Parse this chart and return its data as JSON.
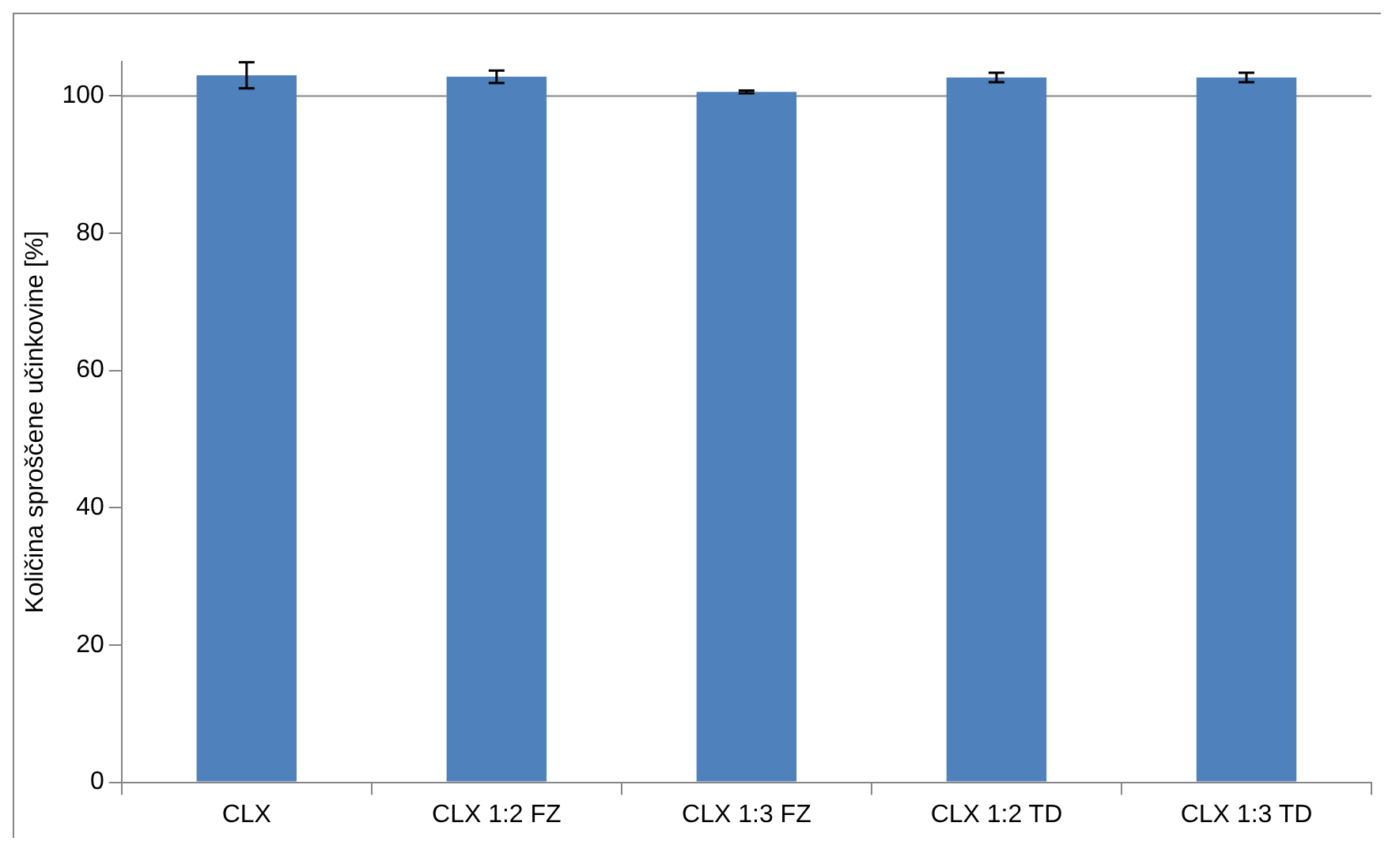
{
  "chart_data": {
    "type": "bar",
    "ylabel": "Količina sproščene učinkovine [%]",
    "categories": [
      "CLX",
      "CLX 1:2 FZ",
      "CLX 1:3 FZ",
      "CLX 1:2 TD",
      "CLX 1:3 TD"
    ],
    "values": [
      103.0,
      102.8,
      100.6,
      102.7,
      102.7
    ],
    "errors": [
      1.9,
      0.9,
      0.2,
      0.7,
      0.7
    ],
    "color": "#4f81bd",
    "ylim": [
      0,
      105
    ],
    "yticks": [
      0,
      20,
      40,
      60,
      80,
      100
    ],
    "ref_lines": [
      {
        "axis": "y",
        "value": 100,
        "color": "#868686"
      }
    ],
    "grid": false,
    "legend": false
  }
}
